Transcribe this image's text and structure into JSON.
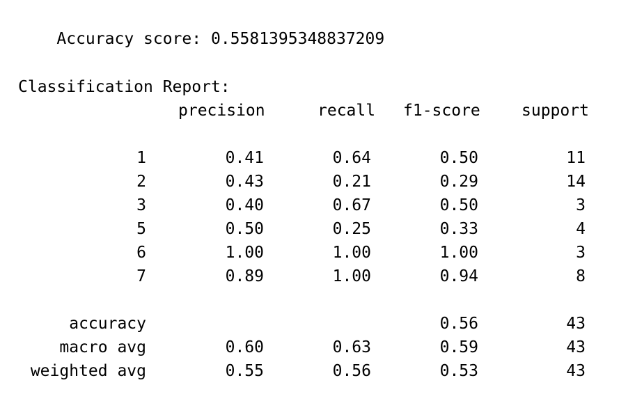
{
  "accuracy_line": {
    "label": "Accuracy score:",
    "value": "0.5581395348837209"
  },
  "report": {
    "title": "Classification Report:",
    "headers": [
      "precision",
      "recall",
      "f1-score",
      "support"
    ],
    "rows": [
      {
        "label": "1",
        "precision": "0.41",
        "recall": "0.64",
        "f1": "0.50",
        "support": "11"
      },
      {
        "label": "2",
        "precision": "0.43",
        "recall": "0.21",
        "f1": "0.29",
        "support": "14"
      },
      {
        "label": "3",
        "precision": "0.40",
        "recall": "0.67",
        "f1": "0.50",
        "support": "3"
      },
      {
        "label": "5",
        "precision": "0.50",
        "recall": "0.25",
        "f1": "0.33",
        "support": "4"
      },
      {
        "label": "6",
        "precision": "1.00",
        "recall": "1.00",
        "f1": "1.00",
        "support": "3"
      },
      {
        "label": "7",
        "precision": "0.89",
        "recall": "1.00",
        "f1": "0.94",
        "support": "8"
      }
    ],
    "summary": [
      {
        "label": "accuracy",
        "precision": "",
        "recall": "",
        "f1": "0.56",
        "support": "43"
      },
      {
        "label": "macro avg",
        "precision": "0.60",
        "recall": "0.63",
        "f1": "0.59",
        "support": "43"
      },
      {
        "label": "weighted avg",
        "precision": "0.55",
        "recall": "0.56",
        "f1": "0.53",
        "support": "43"
      }
    ]
  }
}
